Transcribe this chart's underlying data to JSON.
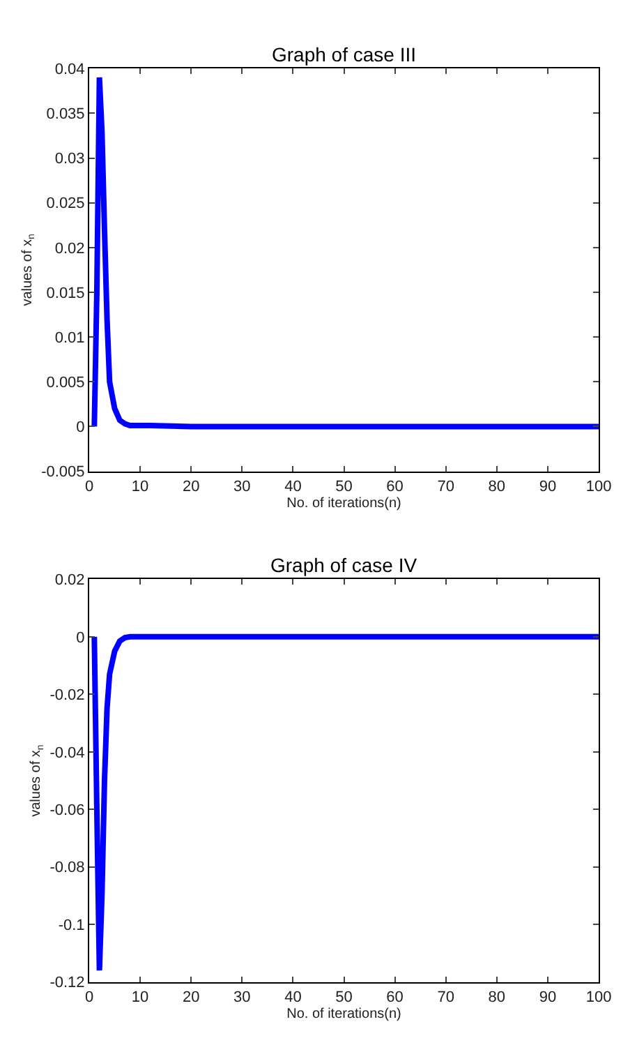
{
  "chart_data": [
    {
      "type": "line",
      "title": "Graph of case III",
      "xlabel": "No. of iterations(n)",
      "ylabel": "values of x$_{n}$",
      "x": [
        1,
        1.5,
        2,
        2.5,
        3,
        3.5,
        4,
        5,
        6,
        7,
        8,
        10,
        12,
        20,
        100
      ],
      "series": [
        {
          "color": "#0000ff",
          "values": [
            0,
            0.015,
            0.039,
            0.033,
            0.022,
            0.012,
            0.005,
            0.002,
            0.0007,
            0.0003,
            0.0001,
            0.0001,
            0.0001,
            0,
            0
          ]
        }
      ],
      "xlim": [
        0,
        100
      ],
      "xticks": [
        0,
        10,
        20,
        30,
        40,
        50,
        60,
        70,
        80,
        90,
        100
      ],
      "ylim": [
        -0.005,
        0.04
      ],
      "yticks": [
        -0.005,
        0,
        0.005,
        0.01,
        0.015,
        0.02,
        0.025,
        0.03,
        0.035,
        0.04
      ],
      "line_style": "solid",
      "marker": "none"
    },
    {
      "type": "line",
      "title": "Graph of case IV",
      "xlabel": "No. of iterations(n)",
      "ylabel": "values of x$_{n}$",
      "x": [
        1,
        1.5,
        2,
        2.5,
        3,
        3.5,
        4,
        5,
        6,
        7,
        8,
        10,
        15,
        100
      ],
      "series": [
        {
          "color": "#0000ff",
          "values": [
            0,
            -0.06,
            -0.116,
            -0.09,
            -0.05,
            -0.025,
            -0.013,
            -0.005,
            -0.0015,
            -0.0003,
            0,
            0,
            0,
            0
          ]
        }
      ],
      "xlim": [
        0,
        100
      ],
      "xticks": [
        0,
        10,
        20,
        30,
        40,
        50,
        60,
        70,
        80,
        90,
        100
      ],
      "ylim": [
        -0.12,
        0.02
      ],
      "yticks": [
        -0.12,
        -0.1,
        -0.08,
        -0.06,
        -0.04,
        -0.02,
        0,
        0.02
      ],
      "line_style": "solid",
      "marker": "none"
    }
  ]
}
